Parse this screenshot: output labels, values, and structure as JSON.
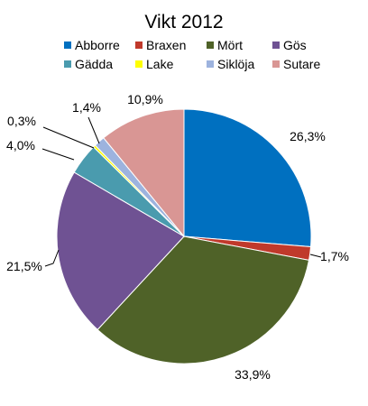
{
  "chart_data": {
    "type": "pie",
    "title": "Vikt 2012",
    "legend_position": "top",
    "start_angle_deg": 0,
    "direction": "clockwise",
    "slices": [
      {
        "label": "Abborre",
        "value": 26.3,
        "display": "26,3%",
        "color": "#0070C0"
      },
      {
        "label": "Braxen",
        "value": 1.7,
        "display": "1,7%",
        "color": "#C0392B"
      },
      {
        "label": "Mört",
        "value": 33.9,
        "display": "33,9%",
        "color": "#4F6228"
      },
      {
        "label": "Gös",
        "value": 21.5,
        "display": "21,5%",
        "color": "#6F5293"
      },
      {
        "label": "Gädda",
        "value": 4.0,
        "display": "4,0%",
        "color": "#4A9BAE"
      },
      {
        "label": "Lake",
        "value": 0.3,
        "display": "0,3%",
        "color": "#FFFF00"
      },
      {
        "label": "Siklöja",
        "value": 1.4,
        "display": "1,4%",
        "color": "#9DB3DE"
      },
      {
        "label": "Sutare",
        "value": 10.9,
        "display": "10,9%",
        "color": "#D99694"
      }
    ]
  }
}
